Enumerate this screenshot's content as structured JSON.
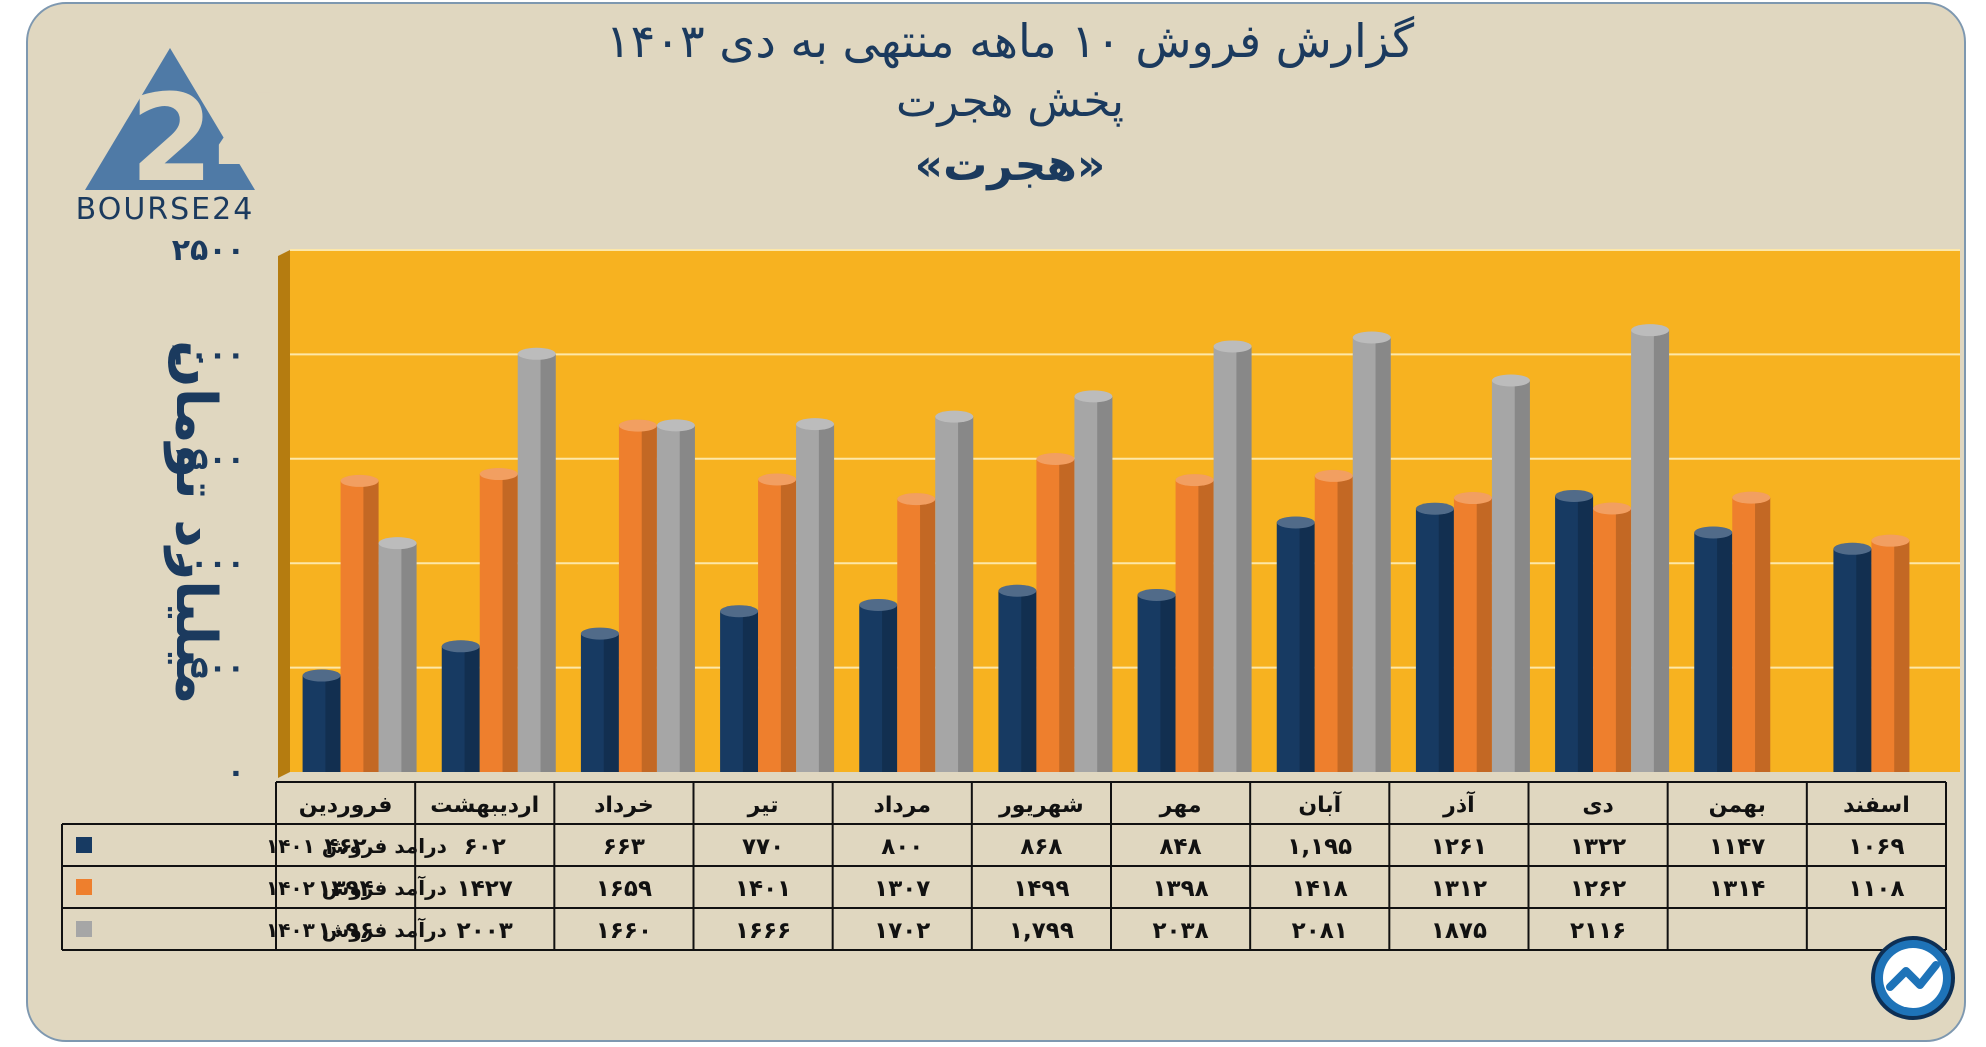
{
  "title_line1": "گزارش  فروش ۱۰ ماهه منتهی به دی ۱۴۰۳",
  "title_line2": "پخش هجرت",
  "title_line3": "«هجرت»",
  "logo_text": "BOURSE24",
  "colors": {
    "background": "#e0d7c0",
    "plot": "#f7b220",
    "series_1401": "#173a62",
    "series_1402": "#ee7f2d",
    "series_1403": "#a6a6a6",
    "text": "#1b3a5e"
  },
  "chart_data": {
    "type": "bar",
    "title": "گزارش  فروش ۱۰ ماهه منتهی به دی ۱۴۰۳",
    "subtitle": "پخش هجرت «هجرت»",
    "ylabel": "میلیارد تومان",
    "ylim": [
      0,
      2500
    ],
    "yticks": [
      0,
      500,
      1000,
      1500,
      2000,
      2500
    ],
    "ytick_labels": [
      "۰",
      "۵۰۰",
      "۱۰۰۰",
      "۱۵۰۰",
      "۲۰۰۰",
      "۲۵۰۰"
    ],
    "grid": true,
    "categories": [
      "فروردین",
      "اردیبهشت",
      "خرداد",
      "تیر",
      "مرداد",
      "شهریور",
      "مهر",
      "آبان",
      "آذر",
      "دی",
      "بهمن",
      "اسفند"
    ],
    "series": [
      {
        "name": "درامد فروش ۱۴۰۱",
        "color": "#173a62",
        "values": [
          462,
          602,
          663,
          770,
          800,
          868,
          848,
          1195,
          1261,
          1322,
          1147,
          1069
        ],
        "labels": [
          "۴۶۲",
          "۶۰۲",
          "۶۶۳",
          "۷۷۰",
          "۸۰۰",
          "۸۶۸",
          "۸۴۸",
          "۱,۱۹۵",
          "۱۲۶۱",
          "۱۳۲۲",
          "۱۱۴۷",
          "۱۰۶۹"
        ]
      },
      {
        "name": "درآمد فروش ۱۴۰۲",
        "color": "#ee7f2d",
        "values": [
          1394,
          1427,
          1659,
          1401,
          1307,
          1499,
          1398,
          1418,
          1312,
          1262,
          1314,
          1108
        ],
        "labels": [
          "۱۳۹۴",
          "۱۴۲۷",
          "۱۶۵۹",
          "۱۴۰۱",
          "۱۳۰۷",
          "۱۴۹۹",
          "۱۳۹۸",
          "۱۴۱۸",
          "۱۳۱۲",
          "۱۲۶۲",
          "۱۳۱۴",
          "۱۱۰۸"
        ]
      },
      {
        "name": "درآمد فروش ۱۴۰۳",
        "color": "#a6a6a6",
        "values": [
          1096,
          2003,
          1660,
          1666,
          1702,
          1799,
          2038,
          2081,
          1875,
          2116,
          null,
          null
        ],
        "labels": [
          "۱۰۹۶",
          "۲۰۰۳",
          "۱۶۶۰",
          "۱۶۶۶",
          "۱۷۰۲",
          "۱,۷۹۹",
          "۲۰۳۸",
          "۲۰۸۱",
          "۱۸۷۵",
          "۲۱۱۶",
          "",
          ""
        ]
      }
    ]
  }
}
